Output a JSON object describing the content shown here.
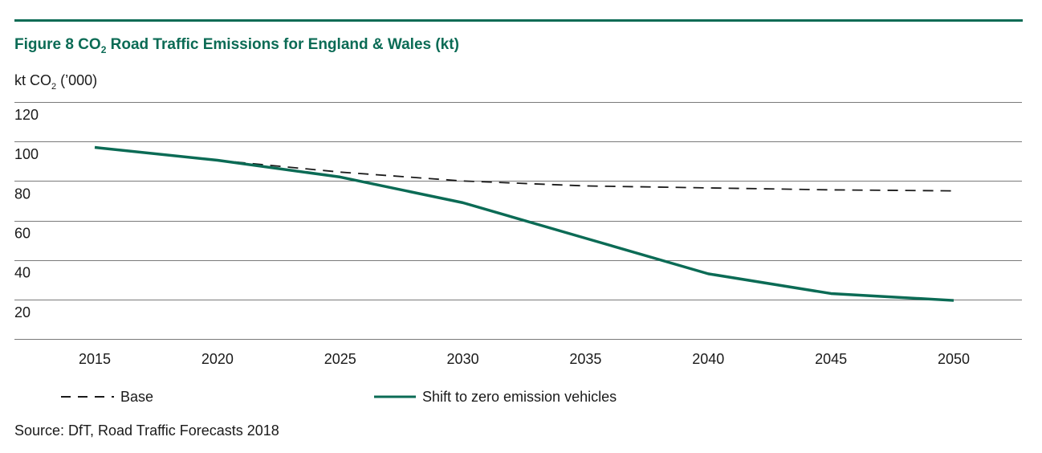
{
  "colors": {
    "accent": "#0b6b55",
    "base_line": "#1a1a1a",
    "grid": "#7a7a7a",
    "text": "#1a1a1a"
  },
  "title_pre": "Figure 8 CO",
  "title_sub": "2",
  "title_post": " Road Traffic Emissions for England & Wales (kt)",
  "ylabel_pre": "kt CO",
  "ylabel_sub": "2",
  "ylabel_post": " (’000)",
  "source": "Source: DfT, Road Traffic Forecasts 2018",
  "chart_data": {
    "type": "line",
    "title": "Figure 8 CO2 Road Traffic Emissions for England & Wales (kt)",
    "xlabel": "",
    "ylabel": "kt CO2 (’000)",
    "x": [
      2015,
      2020,
      2025,
      2030,
      2035,
      2040,
      2045,
      2050
    ],
    "x_tick_labels": [
      "2015",
      "2020",
      "2025",
      "2030",
      "2035",
      "2040",
      "2045",
      "2050"
    ],
    "y_tick_labels": [
      "120",
      "100",
      "80",
      "60",
      "40",
      "20"
    ],
    "y_ticks": [
      120,
      100,
      80,
      60,
      40,
      20
    ],
    "ylim": [
      0,
      120
    ],
    "grid": "horizontal",
    "legend_position": "bottom",
    "series": [
      {
        "name": "Base",
        "style": "dashed",
        "color": "#1a1a1a",
        "values": [
          97,
          90.5,
          84.5,
          80,
          77.5,
          76.5,
          75.5,
          75
        ]
      },
      {
        "name": "Shift to zero emission vehicles",
        "style": "solid",
        "color": "#0b6b55",
        "values": [
          97,
          90.5,
          82,
          69,
          51,
          33,
          23,
          19.5
        ]
      }
    ]
  }
}
